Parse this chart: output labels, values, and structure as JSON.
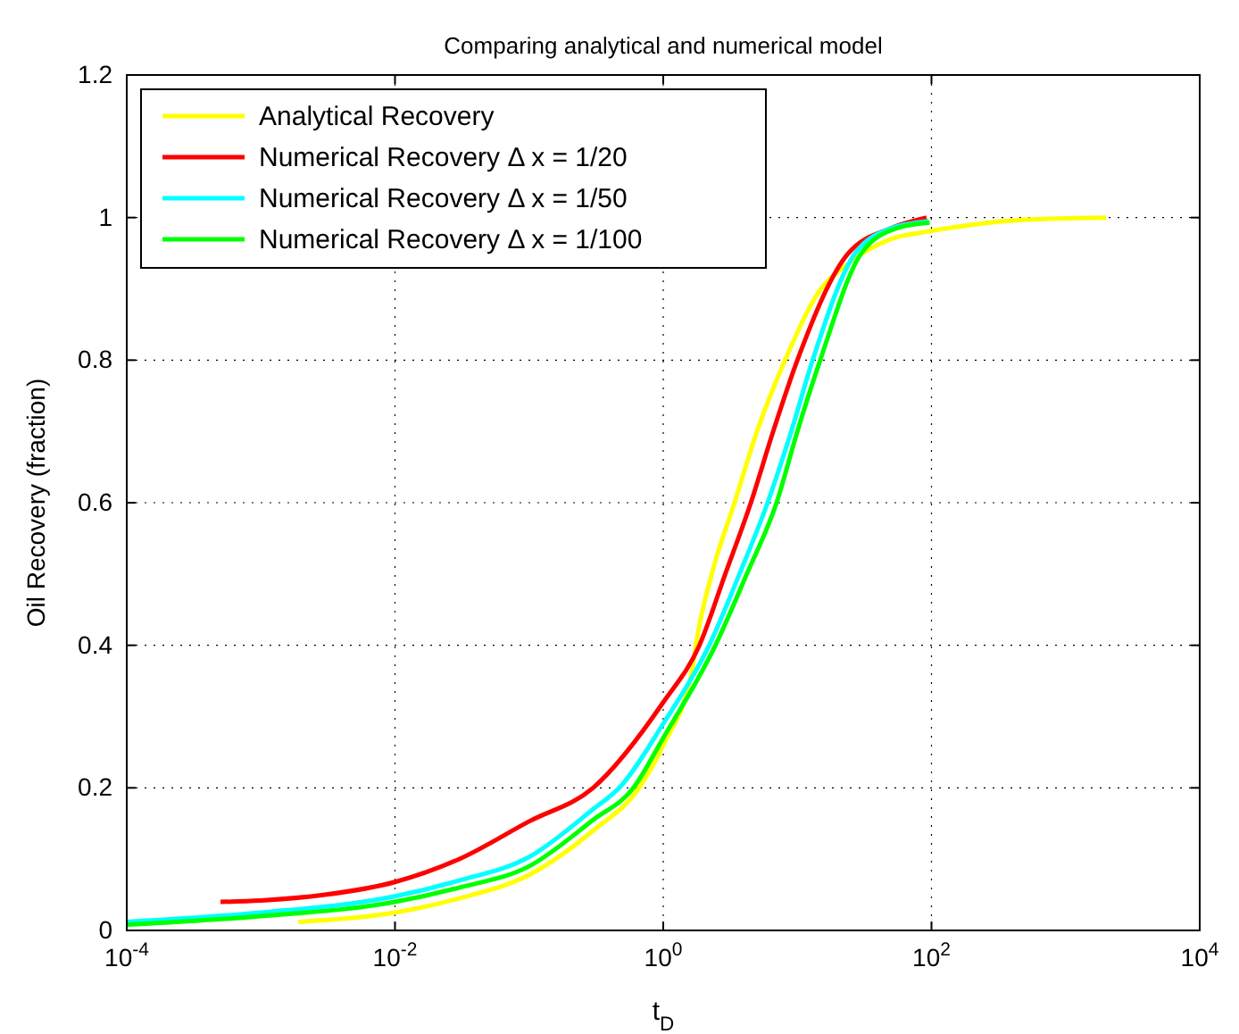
{
  "chart_data": {
    "type": "line",
    "title": "Comparing analytical and numerical model",
    "xlabel": "t$_{D}$",
    "ylabel": "Oil Recovery (fraction)",
    "log": "x",
    "grid": true,
    "legend": "top left",
    "line_style": "solid",
    "marker": "none",
    "xlim": [
      0.0001,
      10000
    ],
    "xticks": [
      {
        "value": 0.0001,
        "label": "10$^{-4}$"
      },
      {
        "value": 0.01,
        "label": "10$^{-2}$"
      },
      {
        "value": 1,
        "label": "10$^{0}$"
      },
      {
        "value": 100,
        "label": "10$^{2}$"
      },
      {
        "value": 10000,
        "label": "10$^{4}$"
      }
    ],
    "ylim": [
      0,
      1.2
    ],
    "yticks": [
      0,
      0.2,
      0.4,
      0.6,
      0.8,
      1,
      1.2
    ],
    "series": [
      {
        "name": "Analytical Recovery",
        "color": "#ffff00",
        "x": [
          0.0019,
          0.01,
          0.03,
          0.1,
          0.3,
          0.66,
          1,
          1.66,
          1.75,
          2.3,
          3.4,
          5,
          8.1,
          15,
          22,
          50,
          91,
          200,
          500,
          2000
        ],
        "values": [
          0.012,
          0.025,
          0.045,
          0.078,
          0.14,
          0.2,
          0.26,
          0.37,
          0.4,
          0.5,
          0.6,
          0.7,
          0.8,
          0.9,
          0.93,
          0.97,
          0.98,
          0.99,
          0.997,
          1.0
        ]
      },
      {
        "name": "Numerical Recovery Δ x = 1/20",
        "color": "#ff0000",
        "x": [
          0.0005,
          0.001,
          0.003,
          0.01,
          0.03,
          0.1,
          0.3,
          1,
          1.86,
          2.9,
          4.5,
          6.6,
          10,
          24,
          50,
          92
        ],
        "values": [
          0.04,
          0.042,
          0.05,
          0.068,
          0.1,
          0.153,
          0.2,
          0.32,
          0.4,
          0.5,
          0.6,
          0.7,
          0.8,
          0.95,
          0.985,
          1.0
        ]
      },
      {
        "name": "Numerical Recovery Δ x = 1/50",
        "color": "#00ffff",
        "x": [
          0.0001,
          0.001,
          0.01,
          0.03,
          0.1,
          0.3,
          0.47,
          1,
          2.2,
          3.7,
          6,
          9,
          13,
          27,
          50,
          95
        ],
        "values": [
          0.012,
          0.025,
          0.048,
          0.07,
          0.103,
          0.17,
          0.2,
          0.29,
          0.4,
          0.5,
          0.6,
          0.7,
          0.8,
          0.95,
          0.985,
          0.995
        ]
      },
      {
        "name": "Numerical Recovery Δ x = 1/100",
        "color": "#00ff00",
        "x": [
          0.0001,
          0.001,
          0.01,
          0.03,
          0.1,
          0.3,
          0.6,
          1,
          2.45,
          4.2,
          7,
          10,
          14.8,
          30,
          55,
          97
        ],
        "values": [
          0.008,
          0.02,
          0.04,
          0.06,
          0.09,
          0.155,
          0.2,
          0.27,
          0.4,
          0.5,
          0.6,
          0.7,
          0.8,
          0.95,
          0.985,
          0.993
        ]
      }
    ]
  }
}
